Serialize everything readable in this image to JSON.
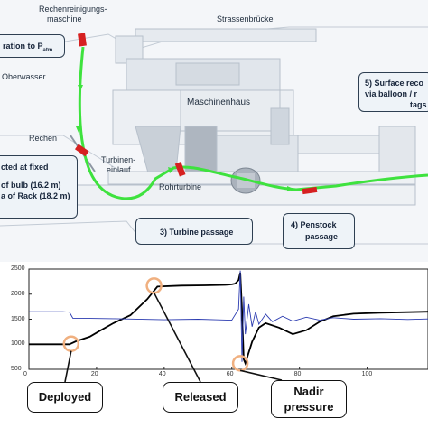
{
  "diagram": {
    "site_labels": {
      "rechenreinigung_line1": "Rechenreinigungs-",
      "rechenreinigung_line2": "maschine",
      "strassenbruecke": "Strassenbrücke",
      "oberwasser": "Oberwasser",
      "maschinenhaus": "Maschinenhaus",
      "rechen": "Rechen",
      "turbineneinlauf_line1": "Turbinen-",
      "turbineneinlauf_line2": "einlauf",
      "rohrturbine": "Rohrturbine"
    },
    "steps": {
      "step1_text": "ration to P",
      "step1_sub": "atm",
      "step2_line1": "cted at fixed",
      "step2_line2": "of bulb (16.2 m)",
      "step2_line3": "a of Rack (18.2 m)",
      "step3": "3) Turbine passage",
      "step4_line1": "4) Penstock",
      "step4_line2": "passage",
      "step5_line1": "5) Surface reco",
      "step5_line2": "via balloon / r",
      "step5_line3": "tags"
    },
    "colors": {
      "path": "#3ee23e",
      "sensor": "#d62020",
      "box_fill": "#eef3f8",
      "box_border": "#2e3f52"
    }
  },
  "chart_data": {
    "type": "line",
    "x_ticks": [
      "0",
      "20",
      "40",
      "60",
      "80",
      "100"
    ],
    "y_ticks": [
      "500",
      "1000",
      "1500",
      "2000",
      "2500"
    ],
    "xlim": [
      0,
      118
    ],
    "ylim": [
      500,
      2500
    ],
    "series": [
      {
        "color": "#000000",
        "points": [
          [
            0,
            1000
          ],
          [
            12,
            1000
          ],
          [
            14,
            1060
          ],
          [
            18,
            1150
          ],
          [
            21,
            1270
          ],
          [
            25,
            1420
          ],
          [
            30,
            1580
          ],
          [
            35,
            1900
          ],
          [
            38,
            2150
          ],
          [
            45,
            2170
          ],
          [
            52,
            2175
          ],
          [
            58,
            2185
          ],
          [
            60,
            2195
          ],
          [
            61,
            2210
          ],
          [
            62,
            2280
          ],
          [
            62.5,
            2430
          ],
          [
            63,
            1700
          ],
          [
            63.5,
            700
          ],
          [
            64,
            620
          ],
          [
            66,
            1050
          ],
          [
            68,
            1330
          ],
          [
            70,
            1420
          ],
          [
            74,
            1330
          ],
          [
            78,
            1200
          ],
          [
            82,
            1280
          ],
          [
            86,
            1450
          ],
          [
            90,
            1560
          ],
          [
            96,
            1610
          ],
          [
            104,
            1630
          ],
          [
            112,
            1640
          ],
          [
            118,
            1650
          ]
        ]
      },
      {
        "color": "#2b3bb0",
        "points": [
          [
            0,
            1650
          ],
          [
            10,
            1650
          ],
          [
            12,
            1640
          ],
          [
            13,
            1520
          ],
          [
            16,
            1520
          ],
          [
            25,
            1510
          ],
          [
            40,
            1490
          ],
          [
            50,
            1500
          ],
          [
            55,
            1490
          ],
          [
            60,
            1480
          ],
          [
            62,
            1700
          ],
          [
            62.5,
            2470
          ],
          [
            63,
            650
          ],
          [
            63.5,
            1950
          ],
          [
            64,
            1200
          ],
          [
            65,
            1800
          ],
          [
            66,
            1350
          ],
          [
            67,
            1650
          ],
          [
            68,
            1400
          ],
          [
            70,
            1600
          ],
          [
            72,
            1450
          ],
          [
            75,
            1560
          ],
          [
            78,
            1460
          ],
          [
            82,
            1540
          ],
          [
            86,
            1480
          ],
          [
            90,
            1530
          ],
          [
            96,
            1500
          ],
          [
            104,
            1510
          ],
          [
            112,
            1495
          ],
          [
            118,
            1505
          ]
        ]
      }
    ],
    "markers": [
      {
        "x": 12.5,
        "y": 1010
      },
      {
        "x": 37,
        "y": 2170
      },
      {
        "x": 62.5,
        "y": 620
      }
    ],
    "callouts": {
      "deployed": "Deployed",
      "released": "Released",
      "nadir_line1": "Nadir",
      "nadir_line2": "pressure"
    }
  }
}
